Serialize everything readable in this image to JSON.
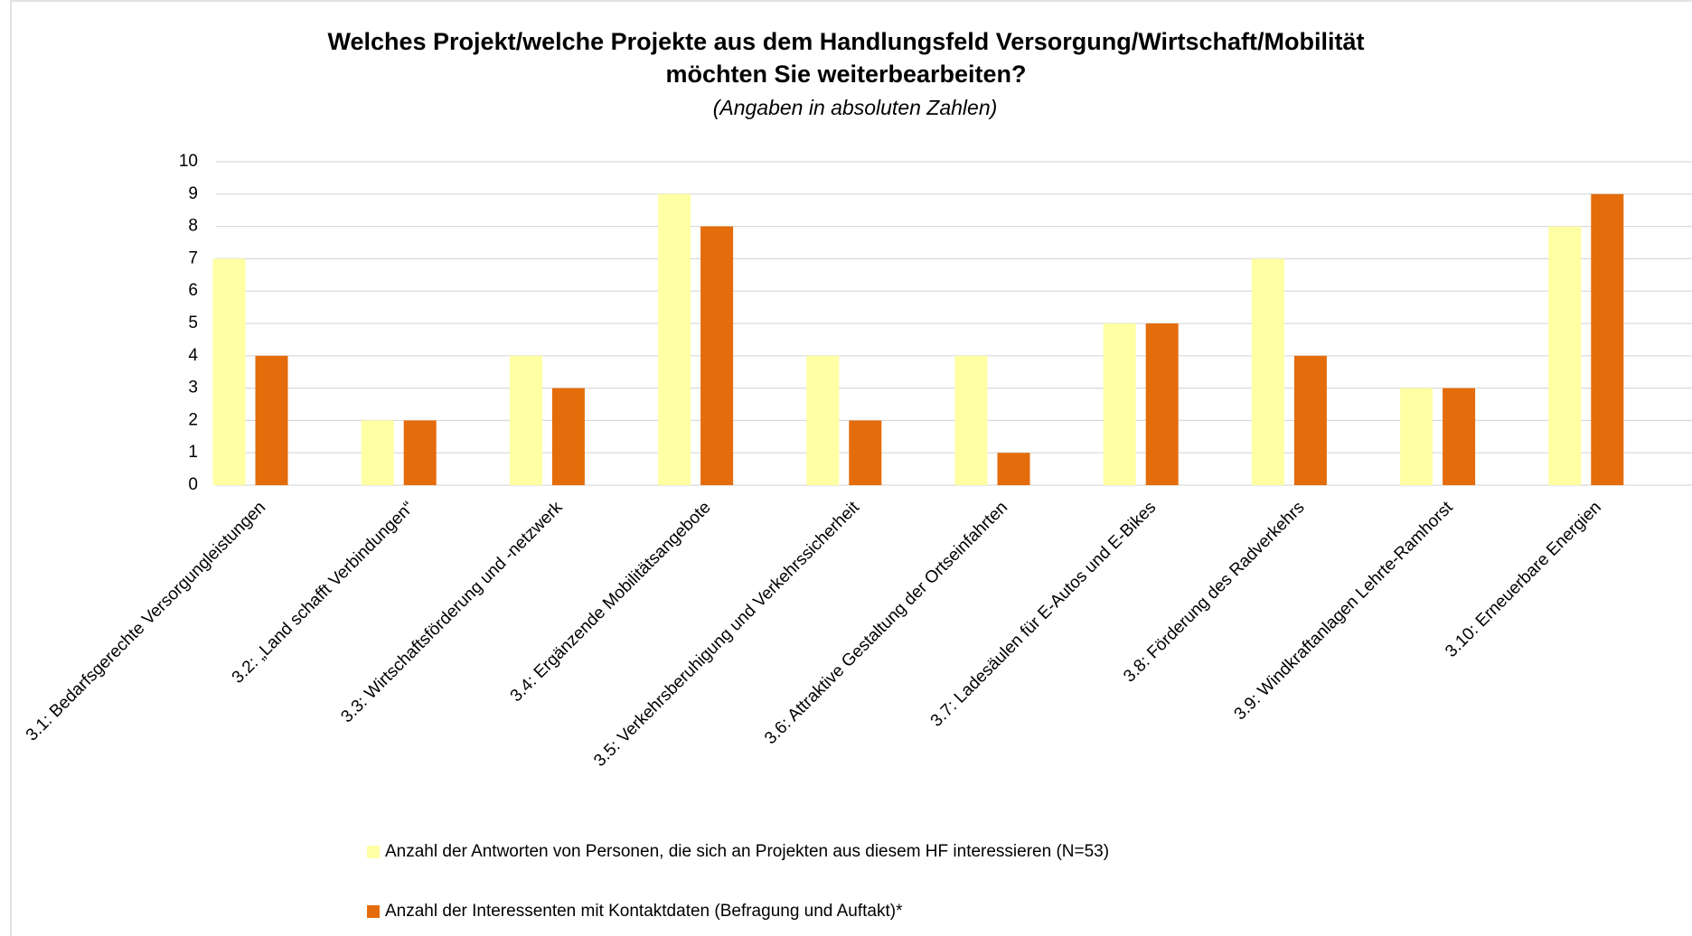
{
  "chart_data": {
    "type": "bar",
    "title": [
      "Welches Projekt/welche Projekte aus dem Handlungsfeld Versorgung/Wirtschaft/Mobilität",
      "möchten Sie weiterbearbeiten?"
    ],
    "subtitle": "(Angaben in absoluten Zahlen)",
    "categories": [
      "3.1: Bedarfsgerechte Versorgungleistungen",
      "3.2: „Land schafft Verbindungen“",
      "3.3: Wirtschaftsförderung und -netzwerk",
      "3.4: Ergänzende Mobilitätsangebote",
      "3.5: Verkehrsberuhigung und Verkehrssicherheit",
      "3.6: Attraktive Gestaltung der Ortseinfahrten",
      "3.7: Ladesäulen für E-Autos und E-Bikes",
      "3.8: Förderung des Radverkehrs",
      "3.9: Windkraftanlagen Lehrte-Ramhorst",
      "3.10: Erneuerbare Energien"
    ],
    "series": [
      {
        "name": "Anzahl der Antworten von Personen, die sich an Projekten aus diesem HF interessieren (N=53)",
        "color": "#ffffa3",
        "values": [
          7,
          2,
          4,
          9,
          4,
          4,
          5,
          7,
          3,
          8
        ]
      },
      {
        "name": "Anzahl der Interessenten mit Kontaktdaten (Befragung und Auftakt)*",
        "color": "#e46c0a",
        "values": [
          4,
          2,
          3,
          8,
          2,
          1,
          5,
          4,
          3,
          9
        ]
      }
    ],
    "ylim": [
      0,
      10
    ],
    "yticks": [
      0,
      1,
      2,
      3,
      4,
      5,
      6,
      7,
      8,
      9,
      10
    ],
    "grid": true
  }
}
